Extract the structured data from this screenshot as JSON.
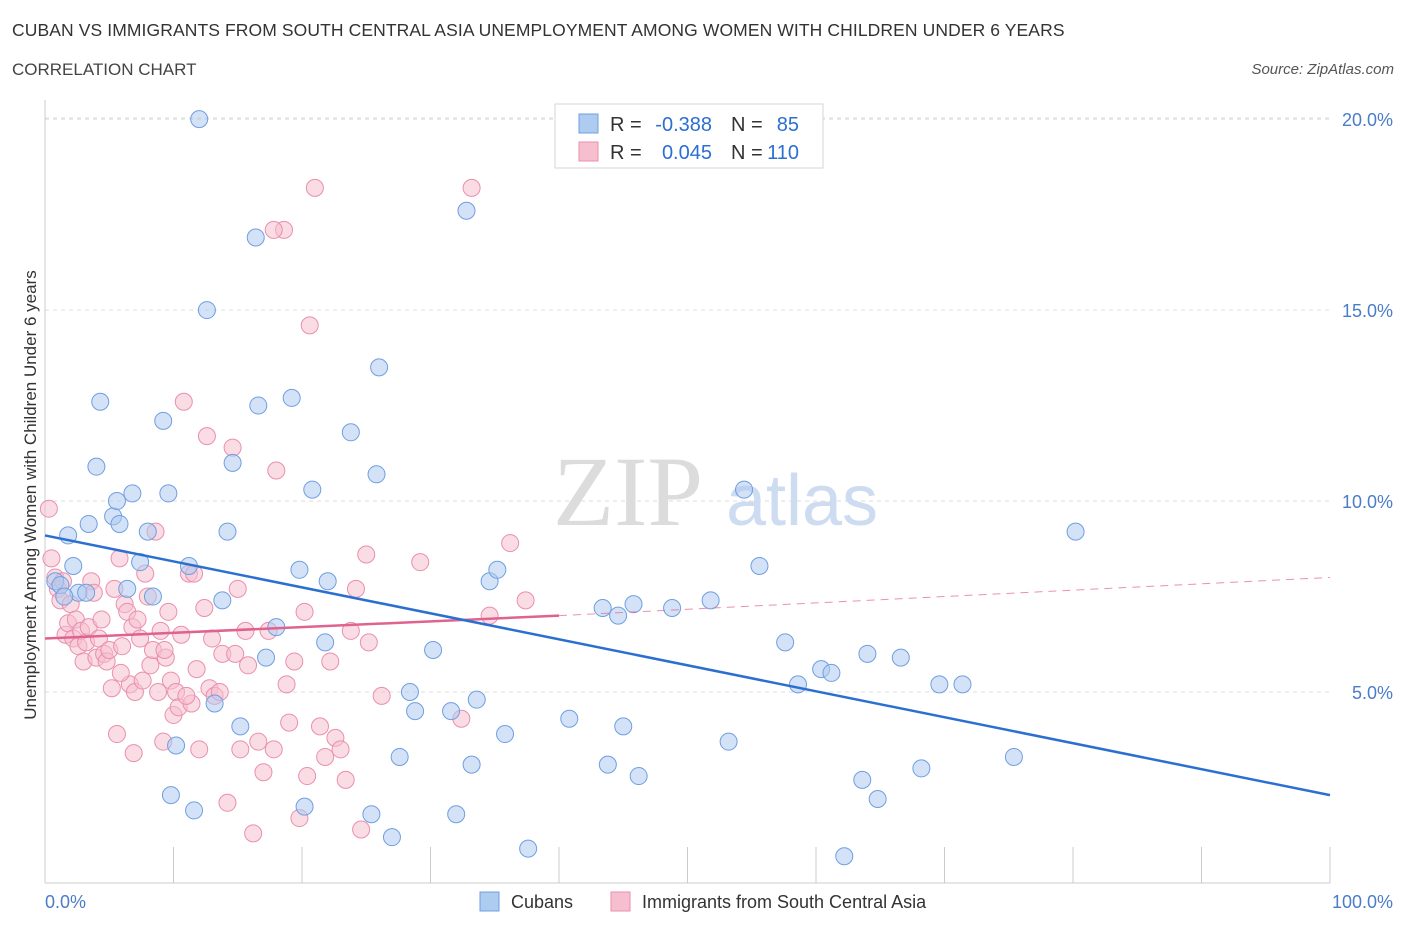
{
  "header": {
    "title": "CUBAN VS IMMIGRANTS FROM SOUTH CENTRAL ASIA UNEMPLOYMENT AMONG WOMEN WITH CHILDREN UNDER 6 YEARS",
    "subtitle": "CORRELATION CHART",
    "source": "Source: ZipAtlas.com",
    "watermark_main": "ZIP",
    "watermark_sub": "atlas"
  },
  "colors": {
    "cubans_fill": "#aecbf0",
    "cubans_stroke": "#6f9fe0",
    "cubans_line": "#2b6fd1",
    "immigrants_fill": "#f6bfd0",
    "immigrants_stroke": "#ea8fae",
    "immigrants_line": "#e0628f",
    "tick_text": "#4a7cc7",
    "grid": "#dddddd"
  },
  "stats_legend": {
    "rows": [
      {
        "r_label": "R =",
        "r_value": "-0.388",
        "n_label": "N =",
        "n_value": "85"
      },
      {
        "r_label": "R =",
        "r_value": "0.045",
        "n_label": "N =",
        "n_value": "110"
      }
    ]
  },
  "chart_data": {
    "type": "scatter",
    "title": "CUBAN VS IMMIGRANTS FROM SOUTH CENTRAL ASIA UNEMPLOYMENT AMONG WOMEN WITH CHILDREN UNDER 6 YEARS",
    "xlabel": "",
    "ylabel": "Unemployment Among Women with Children Under 6 years",
    "xlim": [
      0,
      100
    ],
    "ylim": [
      0,
      20.5
    ],
    "x_tick_labels": [
      "0.0%",
      "100.0%"
    ],
    "y_ticks": [
      5,
      10,
      15,
      20
    ],
    "y_tick_labels": [
      "5.0%",
      "10.0%",
      "15.0%",
      "20.0%"
    ],
    "grid": true,
    "legend_position": "bottom",
    "series": [
      {
        "name": "Cubans",
        "trend": {
          "x": [
            0,
            100
          ],
          "y": [
            9.1,
            2.3
          ]
        },
        "points": [
          [
            0.8,
            7.9
          ],
          [
            1.2,
            7.8
          ],
          [
            1.8,
            9.1
          ],
          [
            2.2,
            8.3
          ],
          [
            2.6,
            7.6
          ],
          [
            3.2,
            7.6
          ],
          [
            3.4,
            9.4
          ],
          [
            4.0,
            10.9
          ],
          [
            4.3,
            12.6
          ],
          [
            5.3,
            9.6
          ],
          [
            5.6,
            10.0
          ],
          [
            5.8,
            9.4
          ],
          [
            6.4,
            7.7
          ],
          [
            6.8,
            10.2
          ],
          [
            7.4,
            8.4
          ],
          [
            8.0,
            9.2
          ],
          [
            8.4,
            7.5
          ],
          [
            9.2,
            12.1
          ],
          [
            9.6,
            10.2
          ],
          [
            10.2,
            3.6
          ],
          [
            9.8,
            2.3
          ],
          [
            11.2,
            8.3
          ],
          [
            11.6,
            1.9
          ],
          [
            12.0,
            20.0
          ],
          [
            12.6,
            15.0
          ],
          [
            13.2,
            4.7
          ],
          [
            13.8,
            7.4
          ],
          [
            14.2,
            9.2
          ],
          [
            14.6,
            11.0
          ],
          [
            15.2,
            4.1
          ],
          [
            16.4,
            16.9
          ],
          [
            16.6,
            12.5
          ],
          [
            17.2,
            5.9
          ],
          [
            18.0,
            6.7
          ],
          [
            19.2,
            12.7
          ],
          [
            19.8,
            8.2
          ],
          [
            20.2,
            2.0
          ],
          [
            20.8,
            10.3
          ],
          [
            21.8,
            6.3
          ],
          [
            22.0,
            7.9
          ],
          [
            23.8,
            11.8
          ],
          [
            25.4,
            1.8
          ],
          [
            25.8,
            10.7
          ],
          [
            26.0,
            13.5
          ],
          [
            27.0,
            1.2
          ],
          [
            27.6,
            3.3
          ],
          [
            28.4,
            5.0
          ],
          [
            28.8,
            4.5
          ],
          [
            30.2,
            6.1
          ],
          [
            31.6,
            4.5
          ],
          [
            32.0,
            1.8
          ],
          [
            32.8,
            17.6
          ],
          [
            33.2,
            3.1
          ],
          [
            33.6,
            4.8
          ],
          [
            34.6,
            7.9
          ],
          [
            35.2,
            8.2
          ],
          [
            35.8,
            3.9
          ],
          [
            37.6,
            0.9
          ],
          [
            40.8,
            4.3
          ],
          [
            43.4,
            7.2
          ],
          [
            43.8,
            3.1
          ],
          [
            44.6,
            7.0
          ],
          [
            45.0,
            4.1
          ],
          [
            45.8,
            7.3
          ],
          [
            46.2,
            2.8
          ],
          [
            48.8,
            7.2
          ],
          [
            51.8,
            7.4
          ],
          [
            53.2,
            3.7
          ],
          [
            54.4,
            10.3
          ],
          [
            55.6,
            8.3
          ],
          [
            57.6,
            6.3
          ],
          [
            58.6,
            5.2
          ],
          [
            60.4,
            5.6
          ],
          [
            61.2,
            5.5
          ],
          [
            62.2,
            0.7
          ],
          [
            63.6,
            2.7
          ],
          [
            64.0,
            6.0
          ],
          [
            64.8,
            2.2
          ],
          [
            66.6,
            5.9
          ],
          [
            68.2,
            3.0
          ],
          [
            69.6,
            5.2
          ],
          [
            71.4,
            5.2
          ],
          [
            75.4,
            3.3
          ],
          [
            80.2,
            9.2
          ],
          [
            1.5,
            7.5
          ]
        ]
      },
      {
        "name": "Immigrants from South Central Asia",
        "trend": {
          "x": [
            0,
            40
          ],
          "y": [
            6.4,
            7.0
          ]
        },
        "trend_extension": {
          "x": [
            40,
            100
          ],
          "y": [
            7.0,
            8.0
          ]
        },
        "points": [
          [
            0.3,
            9.8
          ],
          [
            0.5,
            8.5
          ],
          [
            0.8,
            8.0
          ],
          [
            1.0,
            7.7
          ],
          [
            1.2,
            7.4
          ],
          [
            1.4,
            7.9
          ],
          [
            1.6,
            6.5
          ],
          [
            1.8,
            6.8
          ],
          [
            2.0,
            7.3
          ],
          [
            2.2,
            6.4
          ],
          [
            2.4,
            6.9
          ],
          [
            2.6,
            6.2
          ],
          [
            2.8,
            6.6
          ],
          [
            3.0,
            5.8
          ],
          [
            3.2,
            6.3
          ],
          [
            3.4,
            6.7
          ],
          [
            3.6,
            7.9
          ],
          [
            3.8,
            7.6
          ],
          [
            4.0,
            5.9
          ],
          [
            4.2,
            6.4
          ],
          [
            4.4,
            6.9
          ],
          [
            4.6,
            6.0
          ],
          [
            4.8,
            5.8
          ],
          [
            5.0,
            6.1
          ],
          [
            5.2,
            5.1
          ],
          [
            5.4,
            7.7
          ],
          [
            5.6,
            3.9
          ],
          [
            5.8,
            8.5
          ],
          [
            6.0,
            6.2
          ],
          [
            6.2,
            7.3
          ],
          [
            6.4,
            7.1
          ],
          [
            6.6,
            5.2
          ],
          [
            6.8,
            6.7
          ],
          [
            7.0,
            5.0
          ],
          [
            7.2,
            6.9
          ],
          [
            7.4,
            6.4
          ],
          [
            7.6,
            5.3
          ],
          [
            7.8,
            8.1
          ],
          [
            8.0,
            7.5
          ],
          [
            8.2,
            5.7
          ],
          [
            8.4,
            6.1
          ],
          [
            8.6,
            9.2
          ],
          [
            8.8,
            5.0
          ],
          [
            9.0,
            6.6
          ],
          [
            9.2,
            3.7
          ],
          [
            9.4,
            5.9
          ],
          [
            9.6,
            7.1
          ],
          [
            9.8,
            5.3
          ],
          [
            10.0,
            4.4
          ],
          [
            10.2,
            5.0
          ],
          [
            10.4,
            4.6
          ],
          [
            10.6,
            6.5
          ],
          [
            10.8,
            12.6
          ],
          [
            11.2,
            8.1
          ],
          [
            11.4,
            4.7
          ],
          [
            11.6,
            8.1
          ],
          [
            11.8,
            5.6
          ],
          [
            12.0,
            3.5
          ],
          [
            12.4,
            7.2
          ],
          [
            12.6,
            11.7
          ],
          [
            12.8,
            5.1
          ],
          [
            13.0,
            6.4
          ],
          [
            13.2,
            4.9
          ],
          [
            13.6,
            5.0
          ],
          [
            13.8,
            6.0
          ],
          [
            14.2,
            2.1
          ],
          [
            14.6,
            11.4
          ],
          [
            14.8,
            6.0
          ],
          [
            15.0,
            7.7
          ],
          [
            15.2,
            3.5
          ],
          [
            15.6,
            6.6
          ],
          [
            15.8,
            5.7
          ],
          [
            16.2,
            1.3
          ],
          [
            16.6,
            3.7
          ],
          [
            17.0,
            2.9
          ],
          [
            17.4,
            6.6
          ],
          [
            17.8,
            3.5
          ],
          [
            18.0,
            10.8
          ],
          [
            18.6,
            17.1
          ],
          [
            18.8,
            5.2
          ],
          [
            19.0,
            4.2
          ],
          [
            19.4,
            5.8
          ],
          [
            19.8,
            1.7
          ],
          [
            20.2,
            7.1
          ],
          [
            20.4,
            2.8
          ],
          [
            20.6,
            14.6
          ],
          [
            21.0,
            18.2
          ],
          [
            21.4,
            4.1
          ],
          [
            21.8,
            3.3
          ],
          [
            22.2,
            5.8
          ],
          [
            22.6,
            3.8
          ],
          [
            23.0,
            3.5
          ],
          [
            23.4,
            2.7
          ],
          [
            23.8,
            6.6
          ],
          [
            24.2,
            7.7
          ],
          [
            24.6,
            1.4
          ],
          [
            25.0,
            8.6
          ],
          [
            25.2,
            6.3
          ],
          [
            26.2,
            4.9
          ],
          [
            29.2,
            8.4
          ],
          [
            32.4,
            4.3
          ],
          [
            33.2,
            18.2
          ],
          [
            34.6,
            7.0
          ],
          [
            36.2,
            8.9
          ],
          [
            37.4,
            7.4
          ],
          [
            17.8,
            17.1
          ],
          [
            5.9,
            5.5
          ],
          [
            6.9,
            3.4
          ],
          [
            9.3,
            6.1
          ],
          [
            11.0,
            4.9
          ]
        ]
      }
    ]
  },
  "bottom_legend": [
    {
      "label": "Cubans"
    },
    {
      "label": "Immigrants from South Central Asia"
    }
  ]
}
